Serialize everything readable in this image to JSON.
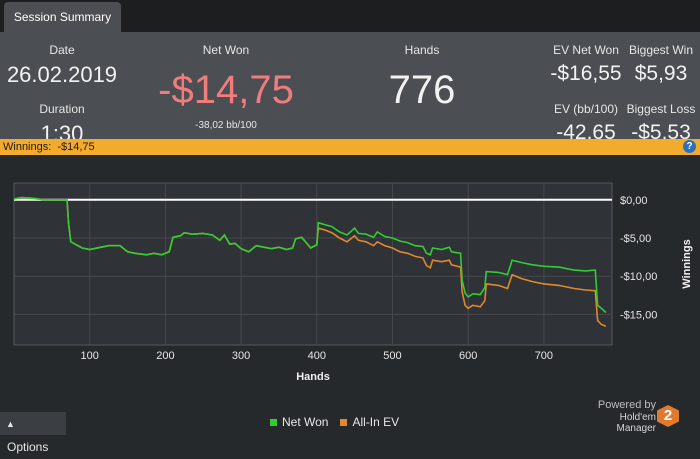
{
  "tab": {
    "label": "Session Summary"
  },
  "summary": {
    "date_label": "Date",
    "date_value": "26.02.2019",
    "duration_label": "Duration",
    "duration_value": "1:30",
    "netwon_label": "Net Won",
    "netwon_value": "-$14,75",
    "netwon_sub": "-38,02 bb/100",
    "hands_label": "Hands",
    "hands_value": "776",
    "evnetwon_label": "EV Net Won",
    "evnetwon_value": "-$16,55",
    "evbb_label": "EV (bb/100)",
    "evbb_value": "-42,65",
    "bigwin_label": "Biggest Win",
    "bigwin_value": "$5,93",
    "bigloss_label": "Biggest Loss",
    "bigloss_value": "-$5,53",
    "netwon_color": "#f07c7c"
  },
  "winbar": {
    "label": "Winnings:",
    "value": "-$14,75",
    "help_icon": "question-icon"
  },
  "chart_data": {
    "type": "line",
    "xlabel": "Hands",
    "ylabel": "Winnings",
    "xlim": [
      0,
      790
    ],
    "ylim": [
      -19,
      2.2
    ],
    "x_ticks": [
      100,
      200,
      300,
      400,
      500,
      600,
      700
    ],
    "x_tick_labels": [
      "100",
      "200",
      "300",
      "400",
      "500",
      "600",
      "700"
    ],
    "y_ticks": [
      0,
      -5,
      -10,
      -15
    ],
    "y_tick_labels": [
      "$0,00",
      "-$5,00",
      "-$10,00",
      "-$15,00"
    ],
    "zero_line": 0,
    "grid": true,
    "legend_position": "bottom",
    "series": [
      {
        "name": "Net Won",
        "color": "#33cc33",
        "points": [
          [
            0,
            0.1
          ],
          [
            10,
            0.3
          ],
          [
            25,
            0.2
          ],
          [
            40,
            0
          ],
          [
            70,
            0
          ],
          [
            72,
            -3
          ],
          [
            75,
            -5.5
          ],
          [
            90,
            -6.3
          ],
          [
            100,
            -6.5
          ],
          [
            115,
            -6.2
          ],
          [
            125,
            -6
          ],
          [
            140,
            -6
          ],
          [
            150,
            -6.8
          ],
          [
            160,
            -7
          ],
          [
            175,
            -7.2
          ],
          [
            185,
            -7
          ],
          [
            195,
            -7.2
          ],
          [
            205,
            -6.8
          ],
          [
            210,
            -4.9
          ],
          [
            220,
            -4.7
          ],
          [
            225,
            -4.3
          ],
          [
            235,
            -4.5
          ],
          [
            250,
            -4.4
          ],
          [
            262,
            -4.6
          ],
          [
            272,
            -5.3
          ],
          [
            278,
            -4.6
          ],
          [
            285,
            -5.8
          ],
          [
            292,
            -5.7
          ],
          [
            300,
            -6.4
          ],
          [
            310,
            -6.8
          ],
          [
            320,
            -6
          ],
          [
            330,
            -6.2
          ],
          [
            340,
            -6.4
          ],
          [
            350,
            -6.2
          ],
          [
            360,
            -6.5
          ],
          [
            368,
            -6.3
          ],
          [
            372,
            -5.1
          ],
          [
            380,
            -4.9
          ],
          [
            386,
            -5.6
          ],
          [
            392,
            -6.3
          ],
          [
            400,
            -5.9
          ],
          [
            402,
            -3
          ],
          [
            412,
            -3.3
          ],
          [
            420,
            -3.5
          ],
          [
            430,
            -4.2
          ],
          [
            440,
            -4.6
          ],
          [
            450,
            -3.7
          ],
          [
            455,
            -4.4
          ],
          [
            465,
            -4.5
          ],
          [
            475,
            -4.9
          ],
          [
            480,
            -4.2
          ],
          [
            490,
            -4.8
          ],
          [
            500,
            -5
          ],
          [
            510,
            -5.4
          ],
          [
            520,
            -5.6
          ],
          [
            530,
            -6
          ],
          [
            540,
            -6.1
          ],
          [
            545,
            -7
          ],
          [
            550,
            -7.2
          ],
          [
            553,
            -6.3
          ],
          [
            565,
            -6.5
          ],
          [
            575,
            -6.2
          ],
          [
            578,
            -6.8
          ],
          [
            590,
            -7
          ],
          [
            592,
            -10.5
          ],
          [
            596,
            -12.2
          ],
          [
            600,
            -12.7
          ],
          [
            606,
            -12.3
          ],
          [
            616,
            -12.4
          ],
          [
            622,
            -11.5
          ],
          [
            624,
            -9.4
          ],
          [
            640,
            -9.5
          ],
          [
            652,
            -9.8
          ],
          [
            658,
            -7.9
          ],
          [
            670,
            -8.2
          ],
          [
            685,
            -8.5
          ],
          [
            700,
            -8.7
          ],
          [
            720,
            -8.8
          ],
          [
            740,
            -9.2
          ],
          [
            755,
            -9.3
          ],
          [
            768,
            -9.2
          ],
          [
            771,
            -13.8
          ],
          [
            776,
            -14.2
          ],
          [
            782,
            -14.75
          ]
        ]
      },
      {
        "name": "All-In EV",
        "color": "#e0882c",
        "points": [
          [
            0,
            0.1
          ],
          [
            10,
            0.3
          ],
          [
            25,
            0.2
          ],
          [
            40,
            0
          ],
          [
            70,
            0
          ],
          [
            72,
            -3
          ],
          [
            75,
            -5.5
          ],
          [
            90,
            -6.3
          ],
          [
            100,
            -6.5
          ],
          [
            115,
            -6.2
          ],
          [
            125,
            -6
          ],
          [
            140,
            -6
          ],
          [
            150,
            -6.8
          ],
          [
            160,
            -7
          ],
          [
            175,
            -7.2
          ],
          [
            185,
            -7
          ],
          [
            195,
            -7.2
          ],
          [
            205,
            -6.8
          ],
          [
            210,
            -4.9
          ],
          [
            220,
            -4.7
          ],
          [
            225,
            -4.3
          ],
          [
            235,
            -4.5
          ],
          [
            250,
            -4.4
          ],
          [
            262,
            -4.6
          ],
          [
            272,
            -5.3
          ],
          [
            278,
            -4.6
          ],
          [
            285,
            -5.8
          ],
          [
            292,
            -5.7
          ],
          [
            300,
            -6.4
          ],
          [
            310,
            -6.8
          ],
          [
            320,
            -6
          ],
          [
            330,
            -6.2
          ],
          [
            340,
            -6.4
          ],
          [
            350,
            -6.2
          ],
          [
            360,
            -6.5
          ],
          [
            368,
            -6.3
          ],
          [
            372,
            -5.1
          ],
          [
            380,
            -4.9
          ],
          [
            386,
            -5.6
          ],
          [
            392,
            -6.3
          ],
          [
            400,
            -5.9
          ],
          [
            402,
            -3.7
          ],
          [
            412,
            -4
          ],
          [
            420,
            -4.3
          ],
          [
            430,
            -5
          ],
          [
            440,
            -5.5
          ],
          [
            450,
            -4.7
          ],
          [
            455,
            -5.3
          ],
          [
            465,
            -5.5
          ],
          [
            475,
            -6
          ],
          [
            480,
            -5.5
          ],
          [
            490,
            -6
          ],
          [
            500,
            -6.3
          ],
          [
            510,
            -6.8
          ],
          [
            520,
            -7
          ],
          [
            530,
            -7.4
          ],
          [
            540,
            -7.6
          ],
          [
            545,
            -8.6
          ],
          [
            550,
            -8.9
          ],
          [
            553,
            -7.9
          ],
          [
            565,
            -8.1
          ],
          [
            575,
            -7.9
          ],
          [
            578,
            -8.5
          ],
          [
            590,
            -8.8
          ],
          [
            592,
            -12
          ],
          [
            596,
            -13.8
          ],
          [
            600,
            -14.2
          ],
          [
            606,
            -13.8
          ],
          [
            616,
            -14
          ],
          [
            622,
            -13.2
          ],
          [
            624,
            -11
          ],
          [
            640,
            -11.2
          ],
          [
            652,
            -11.6
          ],
          [
            658,
            -9.8
          ],
          [
            670,
            -10.3
          ],
          [
            685,
            -10.7
          ],
          [
            700,
            -11
          ],
          [
            720,
            -11.2
          ],
          [
            740,
            -11.6
          ],
          [
            755,
            -11.8
          ],
          [
            768,
            -11.9
          ],
          [
            771,
            -15.8
          ],
          [
            776,
            -16.3
          ],
          [
            782,
            -16.55
          ]
        ]
      }
    ]
  },
  "footer": {
    "options_label": "Options",
    "options_icon": "caret-up-icon",
    "powered_line1": "Powered by",
    "powered_line2": "Hold'em Manager",
    "logo_text": "2"
  }
}
